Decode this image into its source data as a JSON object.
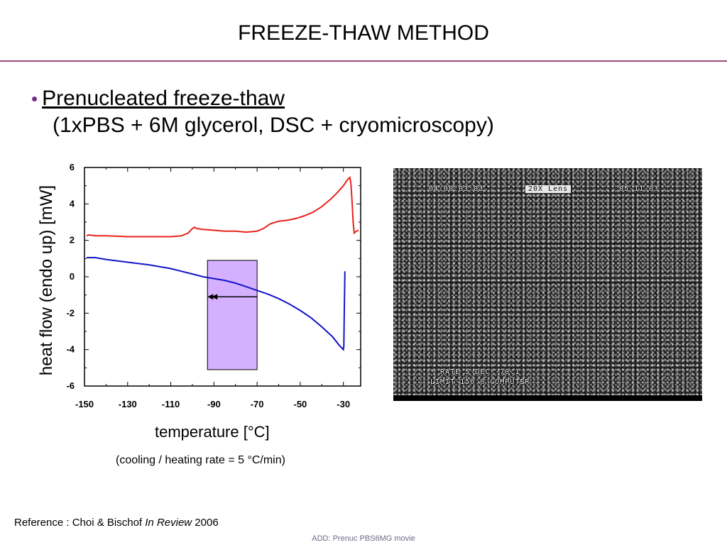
{
  "slide": {
    "title": "FREEZE-THAW METHOD",
    "bullet": "•",
    "bullet_text": "Prenucleated freeze-thaw",
    "sub_text": "(1xPBS + 6M glycerol, DSC + cryomicroscopy)",
    "rate_note": "(cooling / heating rate = 5 °C/min)",
    "reference_prefix": "Reference : Choi & Bischof ",
    "reference_italic": "In Review",
    "reference_suffix": " 2006",
    "footer_note": "ADD: Prenuc PBS6MG movie"
  },
  "micrograph": {
    "time": "04:00:03:03",
    "lens": "20X Lens",
    "date": "05-11-03",
    "rate_line": "* RATE    5 DEC -70.1",
    "limit_line": "LIMIT-150.0 COMPUTER"
  },
  "chart_data": {
    "type": "line",
    "xlabel": "temperature [°C]",
    "ylabel": "heat flow (endo up) [mW]",
    "xlim": [
      -150,
      -22
    ],
    "ylim": [
      -6,
      6
    ],
    "xticks": [
      -150,
      -130,
      -110,
      -90,
      -70,
      -50,
      -30
    ],
    "yticks": [
      6,
      4,
      2,
      0,
      -2,
      -4,
      -6
    ],
    "series": [
      {
        "color": "#e8231a",
        "points": [
          [
            -149,
            2.25
          ],
          [
            -148,
            2.3
          ],
          [
            -145,
            2.25
          ],
          [
            -140,
            2.25
          ],
          [
            -130,
            2.2
          ],
          [
            -120,
            2.2
          ],
          [
            -110,
            2.2
          ],
          [
            -105,
            2.25
          ],
          [
            -102,
            2.4
          ],
          [
            -100,
            2.65
          ],
          [
            -99,
            2.72
          ],
          [
            -98,
            2.65
          ],
          [
            -95,
            2.6
          ],
          [
            -90,
            2.55
          ],
          [
            -85,
            2.5
          ],
          [
            -80,
            2.5
          ],
          [
            -75,
            2.45
          ],
          [
            -70,
            2.5
          ],
          [
            -67,
            2.65
          ],
          [
            -64,
            2.9
          ],
          [
            -60,
            3.05
          ],
          [
            -56,
            3.1
          ],
          [
            -52,
            3.2
          ],
          [
            -48,
            3.35
          ],
          [
            -44,
            3.55
          ],
          [
            -40,
            3.85
          ],
          [
            -36,
            4.25
          ],
          [
            -33,
            4.6
          ],
          [
            -30,
            5.0
          ],
          [
            -28,
            5.35
          ],
          [
            -27,
            5.45
          ],
          [
            -26.5,
            5.1
          ],
          [
            -26,
            4.2
          ],
          [
            -25.5,
            3.0
          ],
          [
            -25,
            2.4
          ],
          [
            -24,
            2.5
          ],
          [
            -23,
            2.55
          ]
        ]
      },
      {
        "color": "#1414c8",
        "points": [
          [
            -149,
            1.05
          ],
          [
            -145,
            1.05
          ],
          [
            -140,
            0.95
          ],
          [
            -130,
            0.8
          ],
          [
            -120,
            0.65
          ],
          [
            -110,
            0.45
          ],
          [
            -100,
            0.15
          ],
          [
            -95,
            0.0
          ],
          [
            -90,
            -0.1
          ],
          [
            -85,
            -0.2
          ],
          [
            -80,
            -0.35
          ],
          [
            -75,
            -0.55
          ],
          [
            -70,
            -0.75
          ],
          [
            -65,
            -0.95
          ],
          [
            -60,
            -1.2
          ],
          [
            -55,
            -1.5
          ],
          [
            -50,
            -1.85
          ],
          [
            -45,
            -2.25
          ],
          [
            -40,
            -2.75
          ],
          [
            -35,
            -3.3
          ],
          [
            -32,
            -3.75
          ],
          [
            -30,
            -4.0
          ],
          [
            -29.8,
            -3.8
          ],
          [
            -29.6,
            -2.0
          ],
          [
            -29.4,
            -0.5
          ],
          [
            -29.3,
            0.3
          ]
        ]
      }
    ],
    "annotation": {
      "band_x": [
        -93,
        -70
      ],
      "band_y": [
        -5.1,
        0.9
      ],
      "band_color": "#d5b0ff",
      "arrow_y": -1.1,
      "arrow_from_x": -70,
      "arrow_to_x": -93
    }
  }
}
